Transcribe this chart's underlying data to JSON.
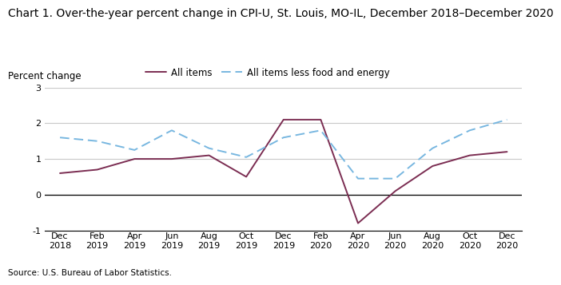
{
  "title": "Chart 1. Over-the-year percent change in CPI-U, St. Louis, MO-IL, December 2018–December 2020",
  "ylabel": "Percent change",
  "source": "Source: U.S. Bureau of Labor Statistics.",
  "legend_all_items": "All items",
  "legend_core": "All items less food and energy",
  "x_labels": [
    "Dec\n2018",
    "Feb\n2019",
    "Apr\n2019",
    "Jun\n2019",
    "Aug\n2019",
    "Oct\n2019",
    "Dec\n2019",
    "Feb\n2020",
    "Apr\n2020",
    "Jun\n2020",
    "Aug\n2020",
    "Oct\n2020",
    "Dec\n2020"
  ],
  "all_items_y": [
    0.6,
    0.7,
    1.0,
    1.0,
    1.1,
    0.5,
    2.1,
    2.1,
    -0.8,
    0.1,
    0.8,
    1.1,
    1.2
  ],
  "core_y": [
    1.6,
    1.5,
    1.25,
    1.8,
    1.3,
    1.05,
    1.6,
    1.8,
    0.45,
    0.45,
    1.3,
    1.8,
    2.1
  ],
  "ylim": [
    -1,
    3
  ],
  "yticks": [
    -1,
    0,
    1,
    2,
    3
  ],
  "all_items_color": "#7B2D52",
  "core_color": "#78b7e0",
  "background_color": "#ffffff",
  "grid_color": "#c8c8c8",
  "title_fontsize": 10,
  "legend_fontsize": 8.5,
  "tick_fontsize": 8,
  "ylabel_fontsize": 8.5,
  "source_fontsize": 7.5
}
